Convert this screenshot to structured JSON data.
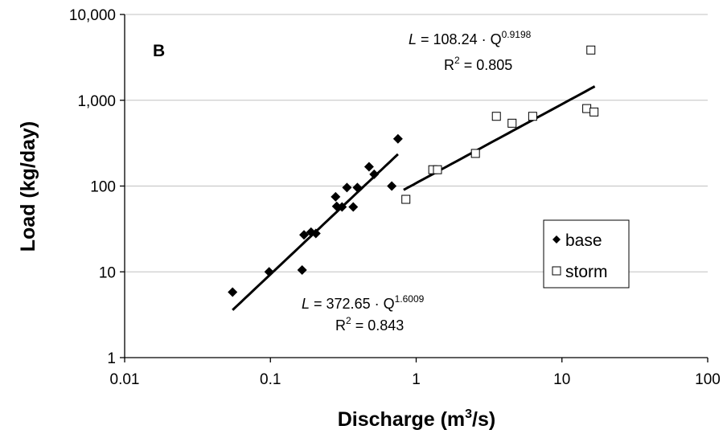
{
  "chart_data": {
    "type": "scatter",
    "panel_label": "B",
    "x_axis": {
      "scale": "log",
      "range": [
        0.01,
        100
      ],
      "ticks": [
        0.01,
        0.1,
        1,
        10,
        100
      ],
      "tick_labels": [
        "0.01",
        "0.1",
        "1",
        "10",
        "100"
      ],
      "label_main": "Discharge (m",
      "label_sup": "3",
      "label_tail": "/s)"
    },
    "y_axis": {
      "scale": "log",
      "range": [
        1,
        10000
      ],
      "ticks": [
        1,
        10,
        100,
        1000,
        10000
      ],
      "tick_labels": [
        "1",
        "10",
        "100",
        "1,000",
        "10,000"
      ],
      "label": "Load (kg/day)"
    },
    "grid": "horizontal major",
    "legend": {
      "position": "right-center",
      "entries": [
        {
          "name": "base",
          "marker": "filled-diamond"
        },
        {
          "name": "storm",
          "marker": "open-square"
        }
      ]
    },
    "series": [
      {
        "name": "base",
        "marker": "filled-diamond",
        "points": [
          [
            0.055,
            5.8
          ],
          [
            0.098,
            10
          ],
          [
            0.165,
            10.5
          ],
          [
            0.17,
            27
          ],
          [
            0.19,
            29
          ],
          [
            0.205,
            28
          ],
          [
            0.28,
            75
          ],
          [
            0.285,
            58
          ],
          [
            0.31,
            57
          ],
          [
            0.335,
            96
          ],
          [
            0.37,
            57
          ],
          [
            0.395,
            96
          ],
          [
            0.475,
            168
          ],
          [
            0.515,
            137
          ],
          [
            0.68,
            100
          ],
          [
            0.75,
            355
          ]
        ],
        "fit": {
          "coef": 372.65,
          "exp": 1.6009,
          "x_range": [
            0.055,
            0.75
          ],
          "r2": 0.843
        },
        "equation_text": {
          "lhs": "L",
          "mid": " = 372.65 · Q",
          "sup": "1.6009",
          "r2_pre": "R",
          "r2_sup": "2",
          "r2_post": " = 0.843"
        }
      },
      {
        "name": "storm",
        "marker": "open-square",
        "points": [
          [
            0.85,
            70
          ],
          [
            1.3,
            155
          ],
          [
            1.4,
            155
          ],
          [
            2.55,
            240
          ],
          [
            3.55,
            650
          ],
          [
            4.55,
            540
          ],
          [
            6.3,
            650
          ],
          [
            14.8,
            800
          ],
          [
            15.8,
            3850
          ],
          [
            16.6,
            730
          ]
        ],
        "fit": {
          "coef": 108.24,
          "exp": 0.9198,
          "x_range": [
            0.82,
            16.8
          ],
          "r2": 0.805
        },
        "equation_text": {
          "lhs": "L",
          "mid": " = 108.24 · Q",
          "sup": "0.9198",
          "r2_pre": "R",
          "r2_sup": "2",
          "r2_post": " = 0.805"
        }
      }
    ]
  }
}
